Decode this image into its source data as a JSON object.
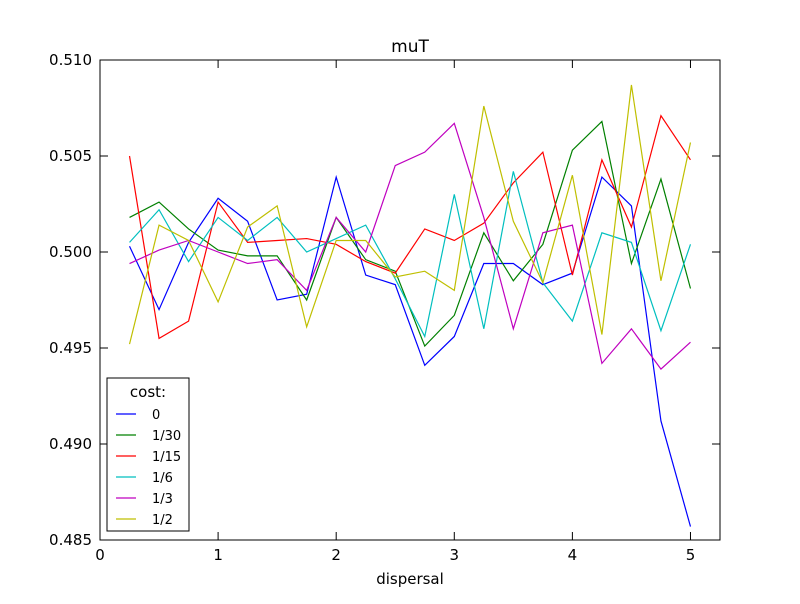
{
  "chart_data": {
    "type": "line",
    "title": "muT",
    "xlabel": "dispersal",
    "ylabel": "",
    "xlim": [
      0,
      5.25
    ],
    "ylim": [
      0.485,
      0.51
    ],
    "xticks": [
      0,
      1,
      2,
      3,
      4,
      5
    ],
    "yticks": [
      0.485,
      0.49,
      0.495,
      0.5,
      0.505,
      0.51
    ],
    "ytick_labels": [
      "0.485",
      "0.490",
      "0.495",
      "0.500",
      "0.505",
      "0.510"
    ],
    "legend": {
      "title": "cost:",
      "position": "lower-left"
    },
    "x": [
      0.25,
      0.5,
      0.75,
      1.0,
      1.25,
      1.5,
      1.75,
      2.0,
      2.25,
      2.5,
      2.75,
      3.0,
      3.25,
      3.5,
      3.75,
      4.0,
      4.25,
      4.5,
      4.75,
      5.0
    ],
    "series": [
      {
        "name": "0",
        "color": "#0000ff",
        "values": [
          0.5003,
          0.497,
          0.5005,
          0.5028,
          0.5016,
          0.4975,
          0.4978,
          0.5039,
          0.4988,
          0.4983,
          0.4941,
          0.4956,
          0.4994,
          0.4994,
          0.4983,
          0.4989,
          0.5039,
          0.5024,
          0.4912,
          0.4857
        ]
      },
      {
        "name": "1/30",
        "color": "#008000",
        "values": [
          0.5018,
          0.5026,
          0.5012,
          0.5001,
          0.4998,
          0.4998,
          0.4975,
          0.5018,
          0.4996,
          0.499,
          0.4951,
          0.4967,
          0.501,
          0.4985,
          0.5004,
          0.5053,
          0.5068,
          0.4994,
          0.5038,
          0.4981
        ]
      },
      {
        "name": "1/15",
        "color": "#ff0000",
        "values": [
          0.505,
          0.4955,
          0.4964,
          0.5026,
          0.5005,
          0.5006,
          0.5007,
          0.5004,
          0.4995,
          0.4989,
          0.5012,
          0.5006,
          0.5015,
          0.5036,
          0.5052,
          0.4988,
          0.5048,
          0.5013,
          0.5071,
          0.5048
        ]
      },
      {
        "name": "1/6",
        "color": "#00bfbf",
        "values": [
          0.5005,
          0.5022,
          0.4995,
          0.5018,
          0.5006,
          0.5018,
          0.5,
          0.5007,
          0.5014,
          0.4986,
          0.4956,
          0.503,
          0.496,
          0.5042,
          0.4984,
          0.4964,
          0.501,
          0.5005,
          0.4959,
          0.5004
        ]
      },
      {
        "name": "1/3",
        "color": "#bf00bf",
        "values": [
          0.4994,
          0.5001,
          0.5006,
          0.5,
          0.4994,
          0.4996,
          0.498,
          0.5018,
          0.5,
          0.5045,
          0.5052,
          0.5067,
          0.5018,
          0.496,
          0.501,
          0.5014,
          0.4942,
          0.496,
          0.4939,
          0.4953
        ]
      },
      {
        "name": "1/2",
        "color": "#bfbf00",
        "values": [
          0.4952,
          0.5014,
          0.5006,
          0.4974,
          0.5013,
          0.5024,
          0.4961,
          0.5006,
          0.5006,
          0.4987,
          0.499,
          0.498,
          0.5076,
          0.5016,
          0.4984,
          0.504,
          0.4957,
          0.5087,
          0.4985,
          0.5057
        ]
      }
    ]
  }
}
